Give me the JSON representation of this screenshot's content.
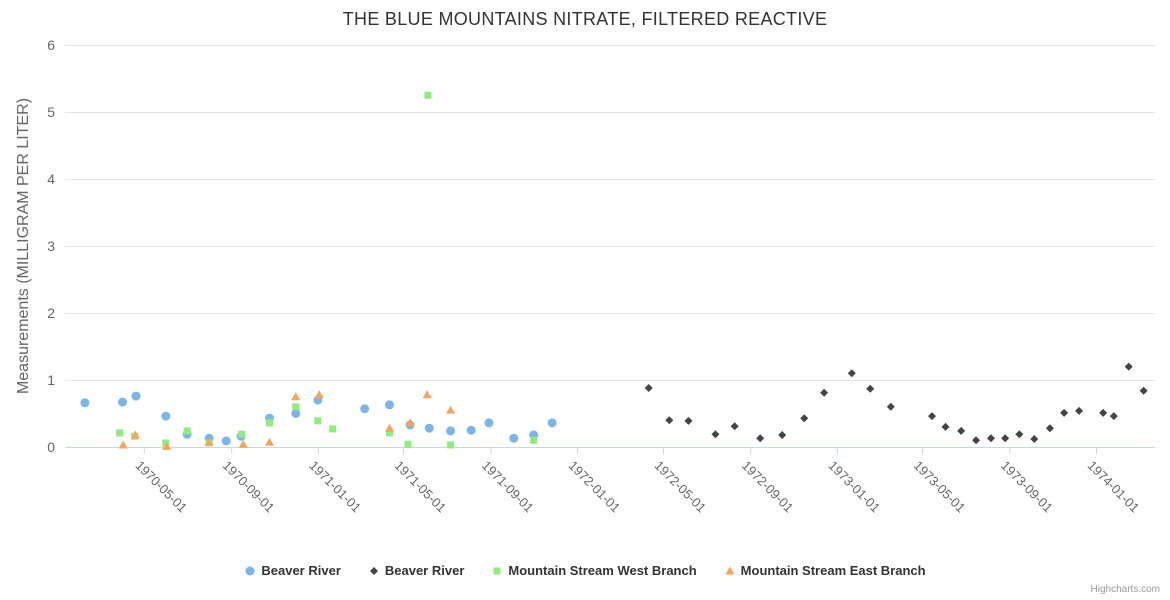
{
  "page": {
    "credits": "Highcharts.com"
  },
  "colors": {
    "background": "#ffffff",
    "title_text": "#333333",
    "axis_label": "#666666",
    "tick_label": "#666666",
    "axis_line": "#ccd6eb",
    "grid_line": "#e6e6e6",
    "legend_text": "#333333",
    "credits_text": "#999999"
  },
  "chart_data": {
    "type": "scatter",
    "title": "THE BLUE MOUNTAINS NITRATE, FILTERED REACTIVE",
    "xlabel": "",
    "ylabel": "Measurements (MILLIGRAM PER LITER)",
    "ylim": [
      0,
      6
    ],
    "yticks": [
      0,
      1,
      2,
      3,
      4,
      5,
      6
    ],
    "xlim": [
      "1970-01-10",
      "1974-03-25"
    ],
    "xticks": [
      "1970-05-01",
      "1970-09-01",
      "1971-01-01",
      "1971-05-01",
      "1971-09-01",
      "1972-01-01",
      "1972-05-01",
      "1972-09-01",
      "1973-01-01",
      "1973-05-01",
      "1973-09-01",
      "1974-01-01"
    ],
    "grid": "horizontal-only",
    "legend_position": "bottom-center",
    "series": [
      {
        "name": "Beaver River",
        "marker": "circle",
        "color": "#7cb5ec",
        "points": [
          [
            "1970-02-07",
            0.66
          ],
          [
            "1970-04-01",
            0.67
          ],
          [
            "1970-04-20",
            0.76
          ],
          [
            "1970-06-01",
            0.46
          ],
          [
            "1970-07-01",
            0.19
          ],
          [
            "1970-08-01",
            0.13
          ],
          [
            "1970-08-25",
            0.09
          ],
          [
            "1970-09-15",
            0.16
          ],
          [
            "1970-10-25",
            0.43
          ],
          [
            "1970-12-01",
            0.5
          ],
          [
            "1971-01-01",
            0.7
          ],
          [
            "1971-03-08",
            0.57
          ],
          [
            "1971-04-12",
            0.63
          ],
          [
            "1971-05-11",
            0.33
          ],
          [
            "1971-06-07",
            0.28
          ],
          [
            "1971-07-07",
            0.24
          ],
          [
            "1971-08-05",
            0.25
          ],
          [
            "1971-08-30",
            0.36
          ],
          [
            "1971-10-04",
            0.13
          ],
          [
            "1971-11-01",
            0.18
          ],
          [
            "1971-11-27",
            0.36
          ]
        ]
      },
      {
        "name": "Beaver River",
        "marker": "diamond",
        "color": "#434348",
        "points": [
          [
            "1972-04-11",
            0.88
          ],
          [
            "1972-05-10",
            0.4
          ],
          [
            "1972-06-06",
            0.39
          ],
          [
            "1972-07-14",
            0.19
          ],
          [
            "1972-08-10",
            0.31
          ],
          [
            "1972-09-15",
            0.13
          ],
          [
            "1972-10-16",
            0.18
          ],
          [
            "1972-11-16",
            0.43
          ],
          [
            "1972-12-14",
            0.81
          ],
          [
            "1973-01-22",
            1.1
          ],
          [
            "1973-02-17",
            0.87
          ],
          [
            "1973-03-18",
            0.6
          ],
          [
            "1973-05-15",
            0.46
          ],
          [
            "1973-06-03",
            0.3
          ],
          [
            "1973-06-25",
            0.24
          ],
          [
            "1973-07-16",
            0.1
          ],
          [
            "1973-08-06",
            0.13
          ],
          [
            "1973-08-26",
            0.13
          ],
          [
            "1973-09-15",
            0.19
          ],
          [
            "1973-10-06",
            0.12
          ],
          [
            "1973-10-28",
            0.28
          ],
          [
            "1973-11-17",
            0.51
          ],
          [
            "1973-12-08",
            0.54
          ],
          [
            "1974-01-11",
            0.51
          ],
          [
            "1974-01-26",
            0.46
          ],
          [
            "1974-02-16",
            1.2
          ],
          [
            "1974-03-09",
            0.84
          ]
        ]
      },
      {
        "name": "Mountain Stream West Branch",
        "marker": "square",
        "color": "#90ed7d",
        "points": [
          [
            "1970-03-28",
            0.21
          ],
          [
            "1970-04-18",
            0.16
          ],
          [
            "1970-06-01",
            0.06
          ],
          [
            "1970-07-01",
            0.24
          ],
          [
            "1970-08-01",
            0.06
          ],
          [
            "1970-09-16",
            0.19
          ],
          [
            "1970-10-25",
            0.36
          ],
          [
            "1970-12-01",
            0.6
          ],
          [
            "1971-01-01",
            0.39
          ],
          [
            "1971-01-22",
            0.27
          ],
          [
            "1971-04-12",
            0.21
          ],
          [
            "1971-05-08",
            0.04
          ],
          [
            "1971-06-05",
            5.25
          ],
          [
            "1971-07-07",
            0.03
          ],
          [
            "1971-11-01",
            0.1
          ]
        ]
      },
      {
        "name": "Mountain Stream East Branch",
        "marker": "triangle",
        "color": "#f7a35c",
        "points": [
          [
            "1970-04-02",
            0.03
          ],
          [
            "1970-04-19",
            0.18
          ],
          [
            "1970-06-02",
            0.01
          ],
          [
            "1970-08-01",
            0.07
          ],
          [
            "1970-09-18",
            0.04
          ],
          [
            "1970-10-25",
            0.07
          ],
          [
            "1970-12-01",
            0.75
          ],
          [
            "1971-01-03",
            0.78
          ],
          [
            "1971-04-12",
            0.28
          ],
          [
            "1971-05-11",
            0.36
          ],
          [
            "1971-06-04",
            0.78
          ],
          [
            "1971-07-07",
            0.55
          ]
        ]
      }
    ]
  }
}
